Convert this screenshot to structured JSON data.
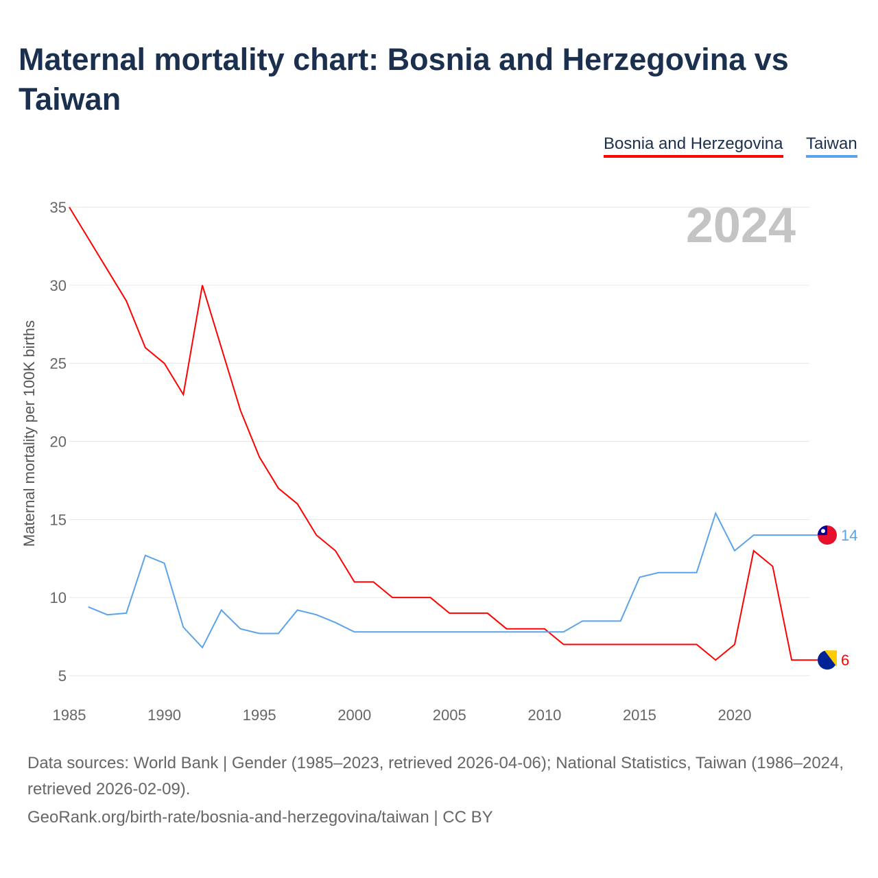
{
  "title": "Maternal mortality chart: Bosnia and Herzegovina vs Taiwan",
  "sources_line1": "Data sources: World Bank | Gender (1985–2023, retrieved 2026-04-06); National Statistics, Taiwan (1986–2024, retrieved 2026-02-09).",
  "sources_line2": "GeoRank.org/birth-rate/bosnia-and-herzegovina/taiwan | CC BY",
  "chart_data": {
    "type": "line",
    "ylabel": "Maternal mortality per 100K births",
    "xlabel": "",
    "year_label": "2024",
    "xlim": [
      1985,
      2024
    ],
    "ylim": [
      5,
      35
    ],
    "x_ticks": [
      "1985",
      "1990",
      "1995",
      "2000",
      "2005",
      "2010",
      "2015",
      "2020"
    ],
    "y_ticks": [
      "5",
      "10",
      "15",
      "20",
      "25",
      "30",
      "35"
    ],
    "grid": true,
    "legend_placement": "top-right",
    "series": [
      {
        "name": "Bosnia and Herzegovina",
        "color": "#ff0000",
        "end_label": "6",
        "x": [
          1985,
          1986,
          1987,
          1988,
          1989,
          1990,
          1991,
          1992,
          1993,
          1994,
          1995,
          1996,
          1997,
          1998,
          1999,
          2000,
          2001,
          2002,
          2003,
          2004,
          2005,
          2006,
          2007,
          2008,
          2009,
          2010,
          2011,
          2012,
          2013,
          2014,
          2015,
          2016,
          2017,
          2018,
          2019,
          2020,
          2021,
          2022,
          2023
        ],
        "values": [
          35,
          33,
          31,
          29,
          26,
          25,
          23,
          30,
          26,
          22,
          19,
          17,
          16,
          14,
          13,
          11,
          11,
          10,
          10,
          10,
          9,
          9,
          9,
          8,
          8,
          8,
          7,
          7,
          7,
          7,
          7,
          7,
          7,
          7,
          6,
          7,
          13,
          12,
          6
        ]
      },
      {
        "name": "Taiwan",
        "color": "#5aa2ea",
        "end_label": "14",
        "x": [
          1986,
          1987,
          1988,
          1989,
          1990,
          1991,
          1992,
          1993,
          1994,
          1995,
          1996,
          1997,
          1998,
          1999,
          2000,
          2001,
          2002,
          2003,
          2004,
          2005,
          2006,
          2007,
          2008,
          2009,
          2010,
          2011,
          2012,
          2013,
          2014,
          2015,
          2016,
          2017,
          2018,
          2019,
          2020,
          2021,
          2022,
          2023,
          2024
        ],
        "values": [
          9.4,
          8.9,
          9.0,
          12.7,
          12.2,
          8.1,
          6.8,
          9.2,
          8.0,
          7.7,
          7.7,
          9.2,
          8.9,
          8.4,
          7.8,
          7.8,
          7.8,
          7.8,
          7.8,
          7.8,
          7.8,
          7.8,
          7.8,
          7.8,
          7.8,
          7.8,
          8.5,
          8.5,
          8.5,
          11.3,
          11.6,
          11.6,
          11.6,
          15.4,
          13.0,
          14,
          14,
          14,
          14
        ]
      }
    ]
  }
}
